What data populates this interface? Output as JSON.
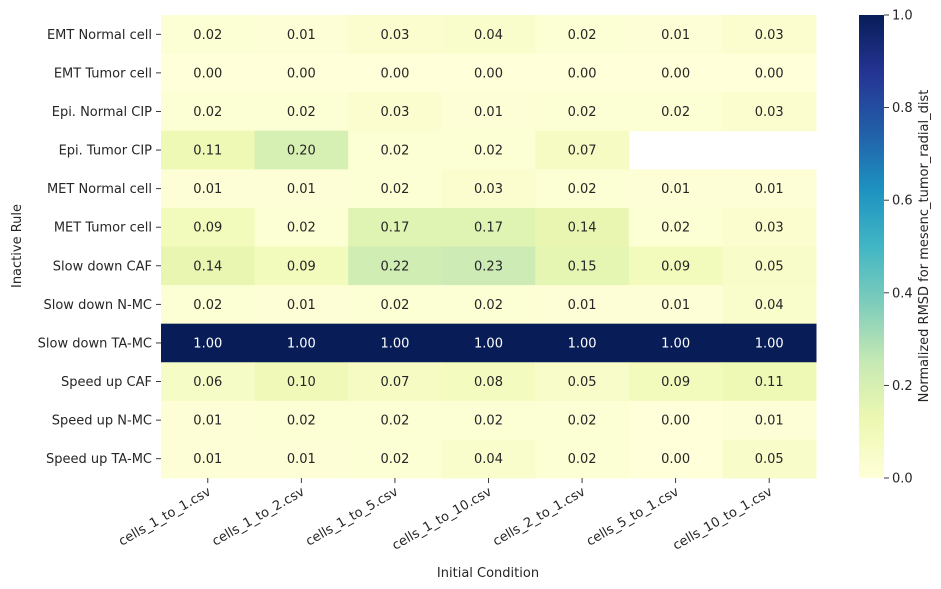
{
  "chart_data": {
    "type": "heatmap",
    "title": "",
    "xlabel": "Initial Condition",
    "ylabel": "Inactive Rule",
    "colorbar_label": "Normalized RMSD for mesenc_tumor_radial_dist",
    "colorbar_range": [
      0.0,
      1.0
    ],
    "colorbar_ticks": [
      "0.0",
      "0.2",
      "0.4",
      "0.6",
      "0.8",
      "1.0"
    ],
    "colormap": "YlGnBu",
    "x_categories": [
      "cells_1_to_1.csv",
      "cells_1_to_2.csv",
      "cells_1_to_5.csv",
      "cells_1_to_10.csv",
      "cells_2_to_1.csv",
      "cells_5_to_1.csv",
      "cells_10_to_1.csv"
    ],
    "y_categories": [
      "EMT Normal cell",
      "EMT Tumor cell",
      "Epi. Normal CIP",
      "Epi. Tumor CIP",
      "MET Normal cell",
      "MET Tumor cell",
      "Slow down CAF",
      "Slow down N-MC",
      "Slow down TA-MC",
      "Speed up CAF",
      "Speed up N-MC",
      "Speed up TA-MC"
    ],
    "values": [
      [
        0.02,
        0.01,
        0.03,
        0.04,
        0.02,
        0.01,
        0.03
      ],
      [
        0.0,
        0.0,
        0.0,
        0.0,
        0.0,
        0.0,
        0.0
      ],
      [
        0.02,
        0.02,
        0.03,
        0.01,
        0.02,
        0.02,
        0.03
      ],
      [
        0.11,
        0.2,
        0.02,
        0.02,
        0.07,
        null,
        null
      ],
      [
        0.01,
        0.01,
        0.02,
        0.03,
        0.02,
        0.01,
        0.01
      ],
      [
        0.09,
        0.02,
        0.17,
        0.17,
        0.14,
        0.02,
        0.03
      ],
      [
        0.14,
        0.09,
        0.22,
        0.23,
        0.15,
        0.09,
        0.05
      ],
      [
        0.02,
        0.01,
        0.02,
        0.02,
        0.01,
        0.01,
        0.04
      ],
      [
        1.0,
        1.0,
        1.0,
        1.0,
        1.0,
        1.0,
        1.0
      ],
      [
        0.06,
        0.1,
        0.07,
        0.08,
        0.05,
        0.09,
        0.11
      ],
      [
        0.01,
        0.02,
        0.02,
        0.02,
        0.02,
        0.0,
        0.01
      ],
      [
        0.01,
        0.01,
        0.02,
        0.04,
        0.02,
        0.0,
        0.05
      ]
    ],
    "value_format": "2 decimals",
    "missing_cells": "blank (white)"
  }
}
